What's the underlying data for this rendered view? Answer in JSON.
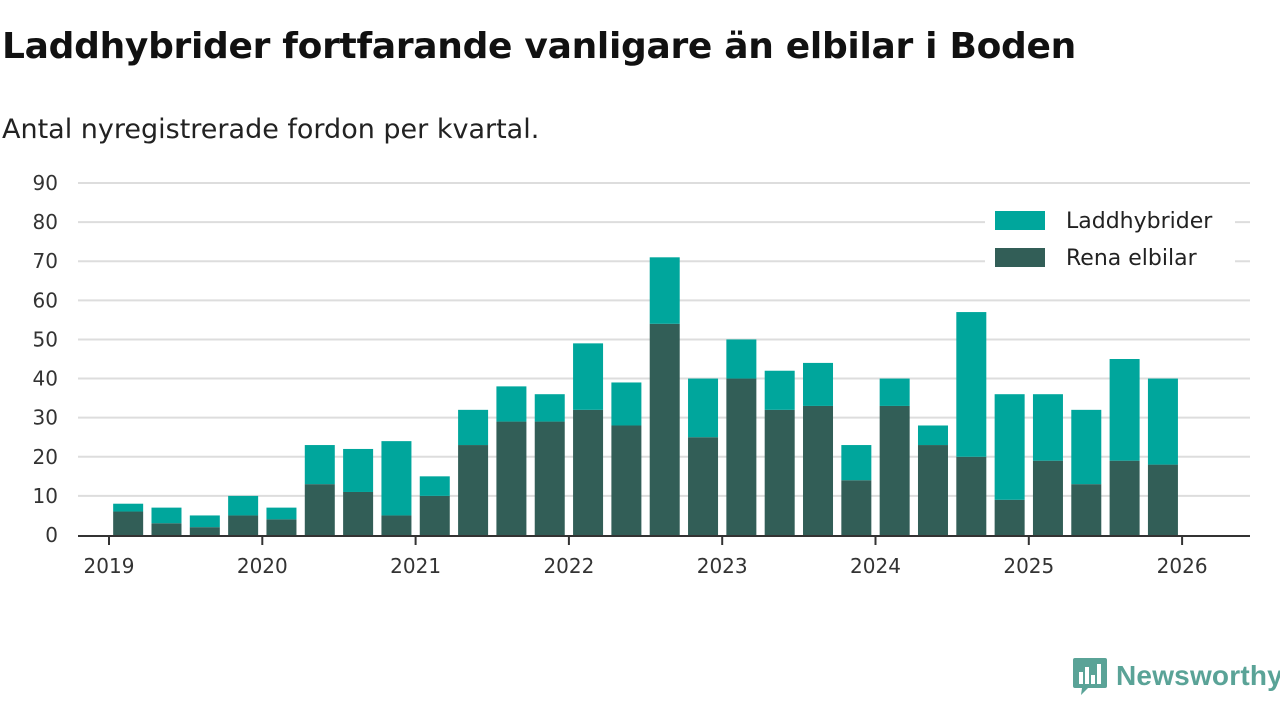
{
  "title": "Laddhybrider fortfarande vanligare än elbilar i Boden",
  "subtitle": "Antal nyregistrerade fordon per kvartal.",
  "brand": "Newsworthy",
  "colors": {
    "laddhybrider": "#00a69c",
    "rena_elbilar": "#325e57",
    "grid": "#dddddd",
    "axis": "#333333",
    "brand": "#5aa397"
  },
  "chart_data": {
    "type": "bar",
    "stacked": true,
    "title": "Laddhybrider fortfarande vanligare än elbilar i Boden",
    "subtitle": "Antal nyregistrerade fordon per kvartal.",
    "xlabel": "",
    "ylabel": "",
    "ylim": [
      0,
      90
    ],
    "yticks": [
      0,
      10,
      20,
      30,
      40,
      50,
      60,
      70,
      80,
      90
    ],
    "xticks": [
      "2019",
      "2020",
      "2021",
      "2022",
      "2023",
      "2024",
      "2025",
      "2026"
    ],
    "legend_position": "top-right",
    "grid": true,
    "categories": [
      "2019Q2",
      "2019Q3",
      "2019Q4",
      "2020Q1",
      "2020Q2",
      "2020Q3",
      "2020Q4",
      "2021Q1",
      "2021Q2",
      "2021Q3",
      "2021Q4",
      "2022Q1",
      "2022Q2",
      "2022Q3",
      "2022Q4",
      "2023Q1",
      "2023Q2",
      "2023Q3",
      "2023Q4",
      "2024Q1",
      "2024Q2",
      "2024Q3",
      "2024Q4",
      "2025Q1",
      "2025Q2",
      "2025Q3",
      "2025Q4",
      "2026Q1"
    ],
    "series": [
      {
        "name": "Rena elbilar",
        "values": [
          6,
          3,
          2,
          5,
          4,
          13,
          11,
          5,
          10,
          23,
          29,
          29,
          32,
          28,
          54,
          25,
          40,
          32,
          33,
          14,
          33,
          23,
          20,
          9,
          19,
          13,
          19,
          18
        ]
      },
      {
        "name": "Laddhybrider",
        "values": [
          2,
          4,
          3,
          5,
          3,
          10,
          11,
          19,
          5,
          9,
          9,
          7,
          17,
          11,
          17,
          15,
          10,
          10,
          11,
          9,
          7,
          5,
          37,
          27,
          17,
          19,
          26,
          22
        ]
      }
    ]
  }
}
